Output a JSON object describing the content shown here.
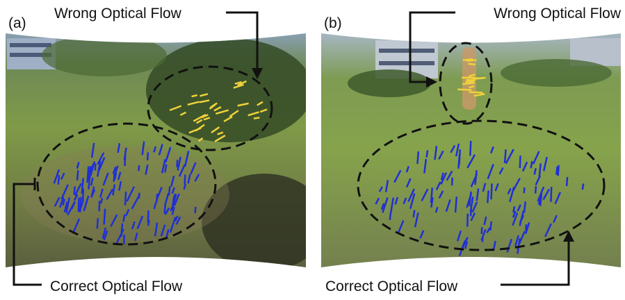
{
  "panels": [
    {
      "label": "(a)",
      "top_annotation": "Wrong Optical Flow",
      "bottom_annotation": "Correct Optical Flow"
    },
    {
      "label": "(b)",
      "top_annotation": "Wrong Optical Flow",
      "bottom_annotation": "Correct Optical Flow"
    }
  ]
}
